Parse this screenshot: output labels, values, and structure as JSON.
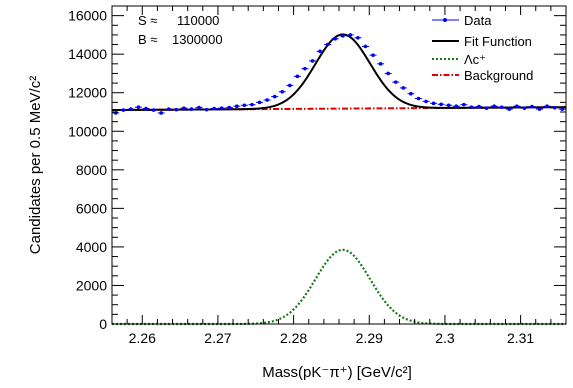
{
  "chart_data": {
    "type": "line",
    "xlabel": "Mass(pK⁻π⁺) [GeV/c²]",
    "ylabel": "Candidates per 0.5 MeV/c²",
    "xlim": [
      2.256,
      2.316
    ],
    "ylim": [
      0,
      16500
    ],
    "grid": false,
    "legend_position": "top-right",
    "x_ticks": [
      2.26,
      2.27,
      2.28,
      2.29,
      2.3,
      2.31
    ],
    "x_tick_labels": [
      "2.26",
      "2.27",
      "2.28",
      "2.29",
      "2.3",
      "2.31"
    ],
    "y_ticks": [
      0,
      2000,
      4000,
      6000,
      8000,
      10000,
      12000,
      14000,
      16000
    ],
    "y_tick_labels": [
      "0",
      "2000",
      "4000",
      "6000",
      "8000",
      "10000",
      "12000",
      "14000",
      "16000"
    ],
    "annotations": [
      {
        "label": "S ≈",
        "value": "110000"
      },
      {
        "label": "B ≈",
        "value": "1300000"
      }
    ],
    "model": {
      "signal_mean": 2.2865,
      "signal_sigma": 0.0036,
      "signal_peak": 3850,
      "background_at_xmin": 11100,
      "background_at_xmax": 11250
    },
    "series": [
      {
        "name": "Data",
        "style": "points",
        "color": "#0000ff",
        "x": [
          2.2565,
          2.2575,
          2.2585,
          2.2595,
          2.2605,
          2.2615,
          2.2625,
          2.2635,
          2.2645,
          2.2655,
          2.2665,
          2.2675,
          2.2685,
          2.2695,
          2.2705,
          2.2715,
          2.2725,
          2.2735,
          2.2745,
          2.2755,
          2.2765,
          2.2775,
          2.2785,
          2.2795,
          2.2805,
          2.2815,
          2.2825,
          2.2835,
          2.2845,
          2.2855,
          2.2865,
          2.2875,
          2.2885,
          2.2895,
          2.2905,
          2.2915,
          2.2925,
          2.2935,
          2.2945,
          2.2955,
          2.2965,
          2.2975,
          2.2985,
          2.2995,
          2.3005,
          2.3015,
          2.3025,
          2.3035,
          2.3045,
          2.3055,
          2.3065,
          2.3075,
          2.3085,
          2.3095,
          2.3105,
          2.3115,
          2.3125,
          2.3135,
          2.3145,
          2.3155
        ],
        "values": [
          10950,
          11100,
          11150,
          11250,
          11180,
          11100,
          10950,
          11150,
          11120,
          11200,
          11150,
          11230,
          11120,
          11180,
          11200,
          11230,
          11300,
          11350,
          11380,
          11500,
          11620,
          11800,
          12050,
          12380,
          12850,
          13250,
          13650,
          14150,
          14500,
          14800,
          14950,
          15000,
          14850,
          14400,
          13950,
          13500,
          13000,
          12550,
          12250,
          11950,
          11700,
          11550,
          11450,
          11400,
          11350,
          11300,
          11380,
          11250,
          11280,
          11200,
          11300,
          11250,
          11150,
          11300,
          11200,
          11280,
          11150,
          11300,
          11220,
          11150
        ]
      },
      {
        "name": "Fit Function",
        "style": "solid",
        "color": "#000000"
      },
      {
        "name": "Λc⁺",
        "style": "dotted",
        "color": "#1a7a1a"
      },
      {
        "name": "Background",
        "style": "dashdot",
        "color": "#e00000"
      }
    ]
  }
}
